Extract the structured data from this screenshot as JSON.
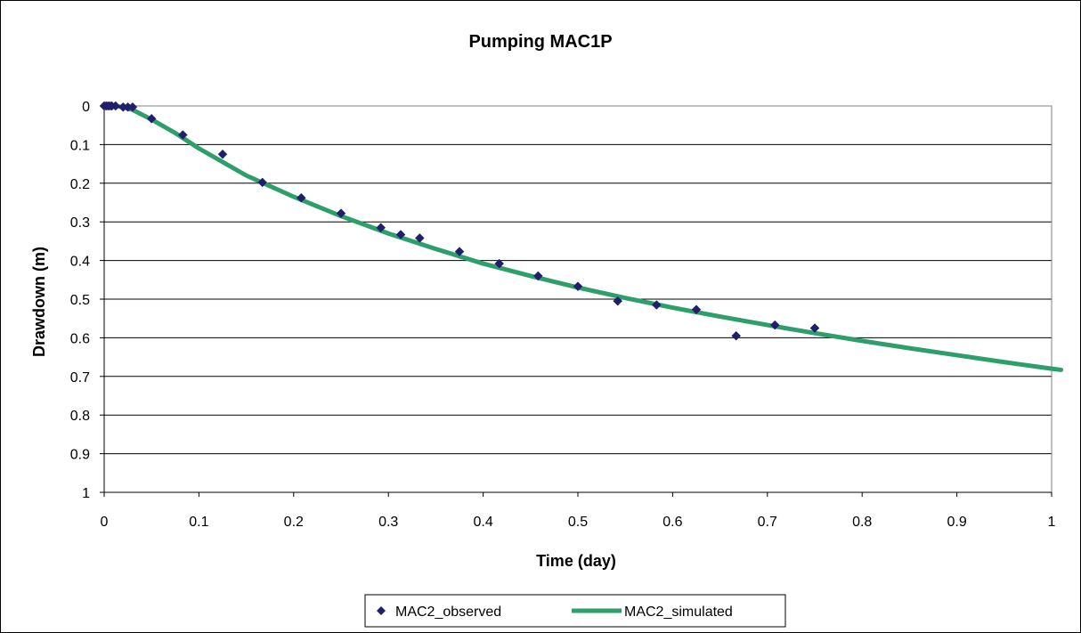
{
  "chart_data": {
    "type": "scatter",
    "title": "Pumping MAC1P",
    "xlabel": "Time (day)",
    "ylabel": "Drawdown (m)",
    "xlim": [
      0,
      1
    ],
    "ylim": [
      0,
      1
    ],
    "y_inverted": true,
    "x_ticks": [
      "0",
      "0.1",
      "0.2",
      "0.3",
      "0.4",
      "0.5",
      "0.6",
      "0.7",
      "0.8",
      "0.9",
      "1"
    ],
    "y_ticks": [
      "0",
      "0.1",
      "0.2",
      "0.3",
      "0.4",
      "0.5",
      "0.6",
      "0.7",
      "0.8",
      "0.9",
      "1"
    ],
    "grid": "horizontal",
    "legend_position": "bottom",
    "colors": {
      "observed": "#1f1f6b",
      "simulated": "#2e9f6a",
      "grid": "#000000",
      "plot_border": "#808080"
    },
    "series": [
      {
        "name": "MAC2_observed",
        "kind": "scatter",
        "marker": "diamond",
        "x": [
          0,
          0.002,
          0.004,
          0.006,
          0.008,
          0.012,
          0.02,
          0.025,
          0.03,
          0.05,
          0.083,
          0.125,
          0.167,
          0.208,
          0.25,
          0.292,
          0.313,
          0.333,
          0.375,
          0.417,
          0.458,
          0.5,
          0.542,
          0.583,
          0.625,
          0.667,
          0.708,
          0.75
        ],
        "y": [
          0,
          0,
          0,
          0,
          0,
          0,
          0.003,
          0.003,
          0.003,
          0.033,
          0.075,
          0.125,
          0.198,
          0.238,
          0.278,
          0.315,
          0.333,
          0.342,
          0.377,
          0.408,
          0.44,
          0.467,
          0.505,
          0.515,
          0.527,
          0.595,
          0.567,
          0.575
        ]
      },
      {
        "name": "MAC2_simulated",
        "kind": "line",
        "x": [
          0,
          0.01,
          0.02,
          0.03,
          0.05,
          0.075,
          0.1,
          0.15,
          0.2,
          0.25,
          0.3,
          0.35,
          0.4,
          0.45,
          0.5,
          0.55,
          0.6,
          0.65,
          0.7,
          0.75,
          0.8,
          0.85,
          0.9,
          0.95,
          1.0,
          1.01
        ],
        "y": [
          0,
          0.0,
          0.003,
          0.01,
          0.035,
          0.07,
          0.11,
          0.18,
          0.235,
          0.285,
          0.33,
          0.37,
          0.408,
          0.44,
          0.47,
          0.497,
          0.522,
          0.545,
          0.567,
          0.588,
          0.608,
          0.627,
          0.645,
          0.663,
          0.68,
          0.683
        ]
      }
    ]
  }
}
